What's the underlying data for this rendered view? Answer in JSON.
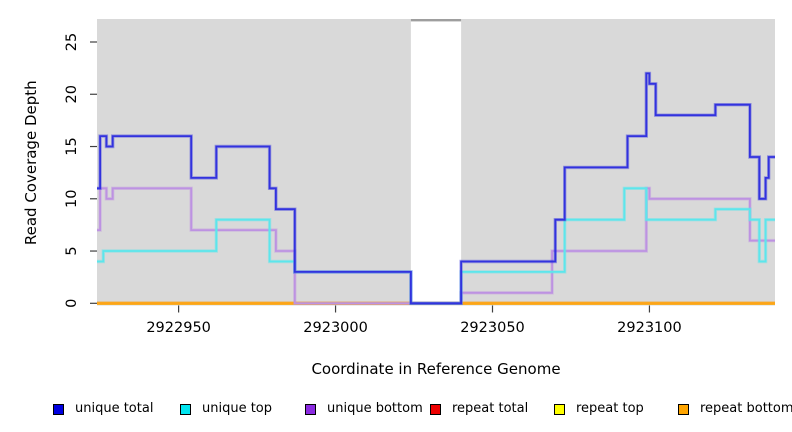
{
  "axes": {
    "x": {
      "label": "Coordinate in Reference Genome",
      "ticks": [
        2922950,
        2923000,
        2923050,
        2923100
      ],
      "range": [
        2922924,
        2923140
      ]
    },
    "y": {
      "label": "Read Coverage Depth",
      "ticks": [
        0,
        5,
        10,
        15,
        20,
        25
      ],
      "range": [
        0,
        27.2
      ]
    }
  },
  "legend": {
    "items": [
      {
        "label": "unique total",
        "color": "#0000E0"
      },
      {
        "label": "unique top",
        "color": "#00E5F0"
      },
      {
        "label": "unique bottom",
        "color": "#8B2BE2"
      },
      {
        "label": "repeat total",
        "color": "#EE0000"
      },
      {
        "label": "repeat top",
        "color": "#FFFF00"
      },
      {
        "label": "repeat bottom",
        "color": "#FFA500"
      }
    ]
  },
  "colors": {
    "plot_background": "#D9D9D9",
    "masked_band_fill": "#FFFFFF",
    "masked_band_cap": "#9E9E9E",
    "tick": "#404040",
    "text": "#000000"
  },
  "chart_data": {
    "type": "line",
    "step": "after",
    "title": "",
    "xlabel": "Coordinate in Reference Genome",
    "ylabel": "Read Coverage Depth",
    "xlim": [
      2922924,
      2923140
    ],
    "ylim": [
      0,
      27.2
    ],
    "grid": false,
    "legend_position": "bottom",
    "masked_region": {
      "start": 2923024,
      "end": 2923040
    },
    "series": [
      {
        "name": "repeat total",
        "line_color": "#DD0000",
        "points": [
          [
            2922924,
            0
          ]
        ]
      },
      {
        "name": "repeat top",
        "line_color": "#FFFF00",
        "points": [
          [
            2922924,
            0
          ]
        ]
      },
      {
        "name": "repeat bottom",
        "line_color": "#FFA318",
        "points": [
          [
            2922924,
            0
          ]
        ]
      },
      {
        "name": "unique bottom",
        "line_color": "#BD92E2",
        "points": [
          [
            2922924,
            7
          ],
          [
            2922925,
            11
          ],
          [
            2922927,
            10
          ],
          [
            2922929,
            11
          ],
          [
            2922954,
            7
          ],
          [
            2922981,
            5
          ],
          [
            2922987,
            0
          ],
          [
            2923040,
            1
          ],
          [
            2923069,
            5
          ],
          [
            2923099,
            11
          ],
          [
            2923100,
            10
          ],
          [
            2923132,
            6
          ]
        ]
      },
      {
        "name": "unique top",
        "line_color": "#5CE6EC",
        "points": [
          [
            2922924,
            4
          ],
          [
            2922926,
            5
          ],
          [
            2922962,
            8
          ],
          [
            2922979,
            4
          ],
          [
            2922987,
            3
          ],
          [
            2923024,
            0
          ],
          [
            2923040,
            3
          ],
          [
            2923073,
            8
          ],
          [
            2923092,
            11
          ],
          [
            2923099,
            8
          ],
          [
            2923121,
            9
          ],
          [
            2923132,
            8
          ],
          [
            2923135,
            4
          ],
          [
            2923137,
            8
          ]
        ]
      },
      {
        "name": "unique total",
        "line_color": "#3232DE",
        "points": [
          [
            2922924,
            11
          ],
          [
            2922925,
            16
          ],
          [
            2922927,
            15
          ],
          [
            2922929,
            16
          ],
          [
            2922954,
            12
          ],
          [
            2922962,
            15
          ],
          [
            2922979,
            11
          ],
          [
            2922981,
            9
          ],
          [
            2922987,
            3
          ],
          [
            2923024,
            0
          ],
          [
            2923040,
            4
          ],
          [
            2923070,
            8
          ],
          [
            2923073,
            13
          ],
          [
            2923093,
            16
          ],
          [
            2923099,
            22
          ],
          [
            2923100,
            21
          ],
          [
            2923102,
            18
          ],
          [
            2923121,
            19
          ],
          [
            2923132,
            14
          ],
          [
            2923135,
            10
          ],
          [
            2923137,
            12
          ],
          [
            2923138,
            14
          ]
        ]
      }
    ]
  }
}
